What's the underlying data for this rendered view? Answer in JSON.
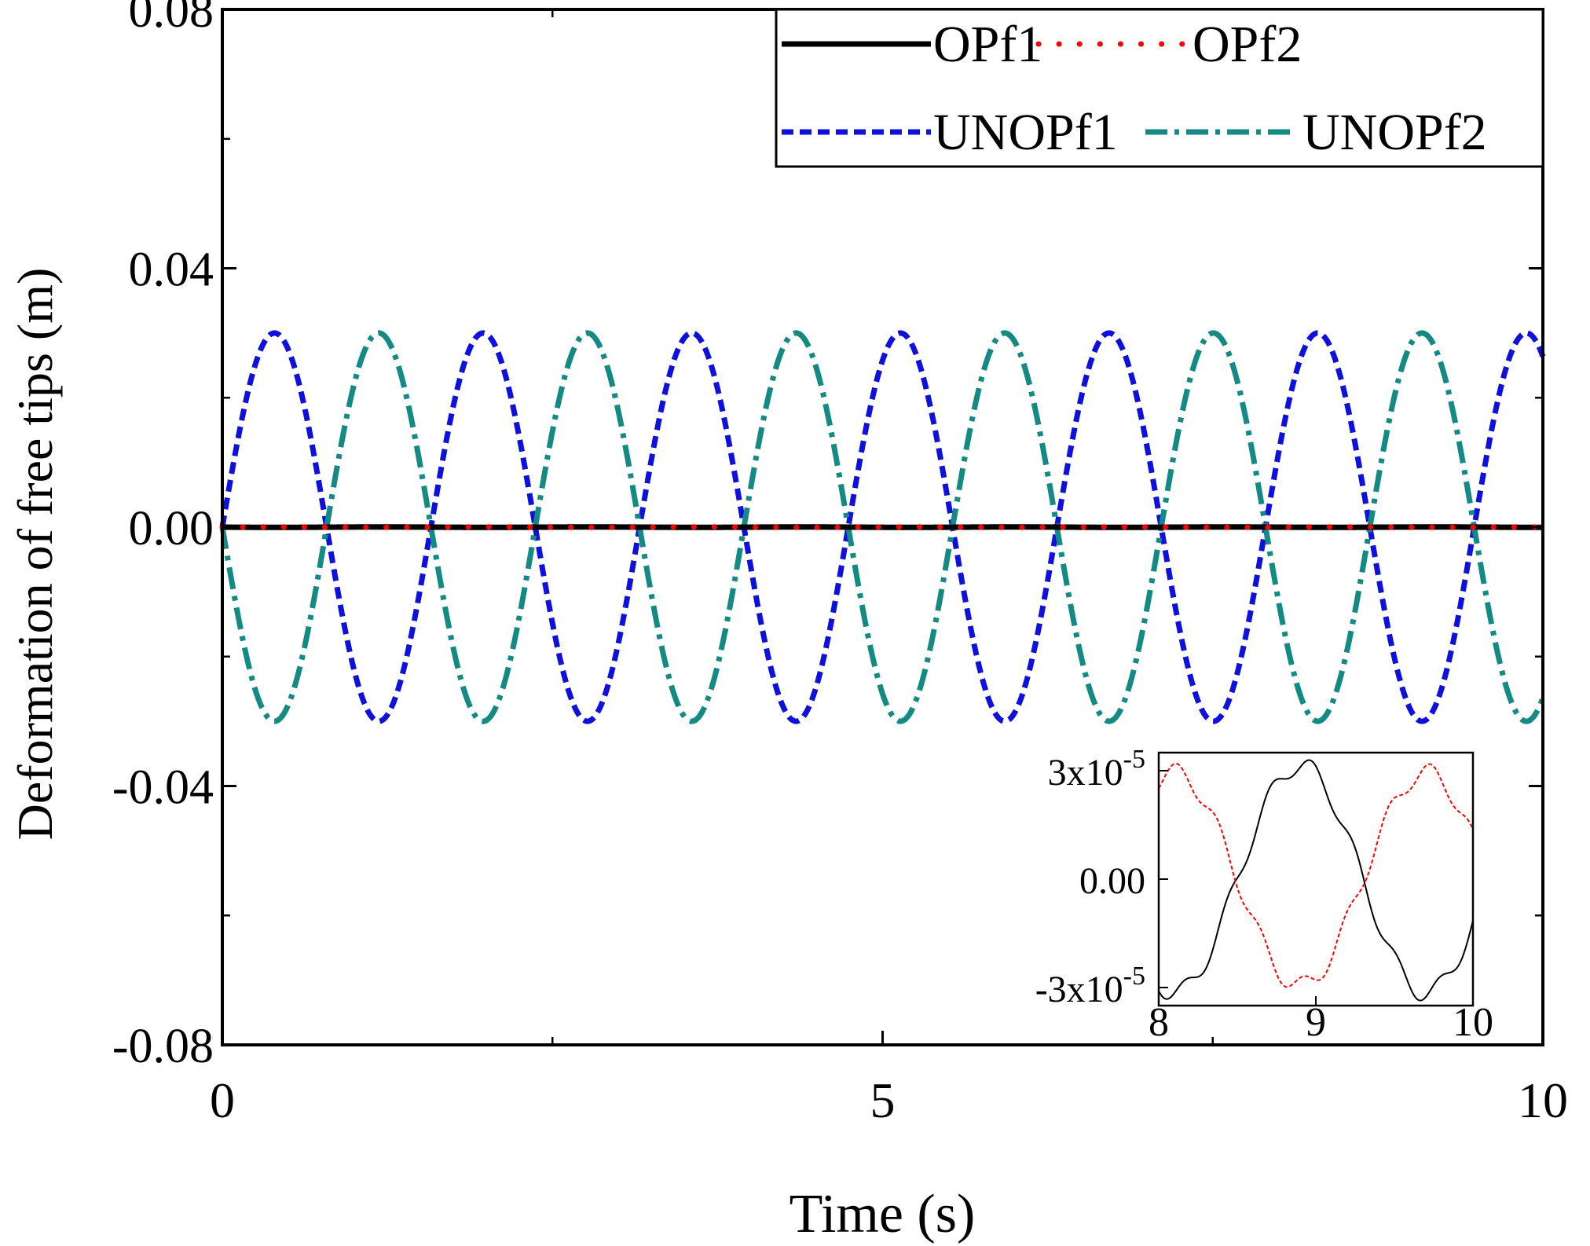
{
  "chart_data": {
    "type": "line",
    "title": "",
    "xlabel": "Time (s)",
    "ylabel": "Deformation of free tips  (m)",
    "xlim": [
      0,
      10
    ],
    "ylim": [
      -0.08,
      0.08
    ],
    "x_ticks": [
      0,
      5,
      10
    ],
    "x_tick_labels": [
      "0",
      "5",
      "10"
    ],
    "y_ticks": [
      -0.08,
      -0.04,
      0.0,
      0.04,
      0.08
    ],
    "y_tick_labels": [
      "-0.08",
      "-0.04",
      "0.00",
      "0.04",
      "0.08"
    ],
    "legend_position": "top-right",
    "series": [
      {
        "name": "OPf1",
        "color": "#000000",
        "style": "solid",
        "amplitude": 3e-05,
        "period": 1.6,
        "phase": 3.14159,
        "start": 0.0
      },
      {
        "name": "OPf2",
        "color": "#ff0000",
        "style": "dotted",
        "amplitude": 3e-05,
        "period": 1.6,
        "phase": 0.0,
        "start": 0.0
      },
      {
        "name": "UNOPf1",
        "color": "#1010dd",
        "style": "dashed",
        "amplitude": 0.03,
        "period": 1.58,
        "phase": 0.0,
        "start": 0.0
      },
      {
        "name": "UNOPf2",
        "color": "#138a84",
        "style": "dashdot",
        "amplitude": 0.03,
        "period": 1.58,
        "phase": 3.14159,
        "start": 0.0
      }
    ],
    "inset": {
      "xlim": [
        8,
        10
      ],
      "ylim": [
        -3.5e-05,
        3.5e-05
      ],
      "x_ticks": [
        8,
        9,
        10
      ],
      "x_tick_labels": [
        "8",
        "9",
        "10"
      ],
      "y_ticks": [
        3e-05,
        0.0,
        -3e-05
      ],
      "y_tick_labels": [
        {
          "mantissa": "3x10",
          "exp": "-5"
        },
        {
          "mantissa": "0.00",
          "exp": ""
        },
        {
          "mantissa": "-3x10",
          "exp": "-5"
        }
      ],
      "series": [
        {
          "name": "OPf1",
          "color": "#000000",
          "style": "solid",
          "amplitude": 3.15e-05,
          "period": 1.6,
          "center": 8.9,
          "ripple": 2.5e-06
        },
        {
          "name": "OPf2",
          "color": "#ff0000",
          "style": "dashed",
          "amplitude": 2.95e-05,
          "period": 1.6,
          "center": 9.7,
          "ripple": 2.5e-06
        }
      ]
    }
  }
}
